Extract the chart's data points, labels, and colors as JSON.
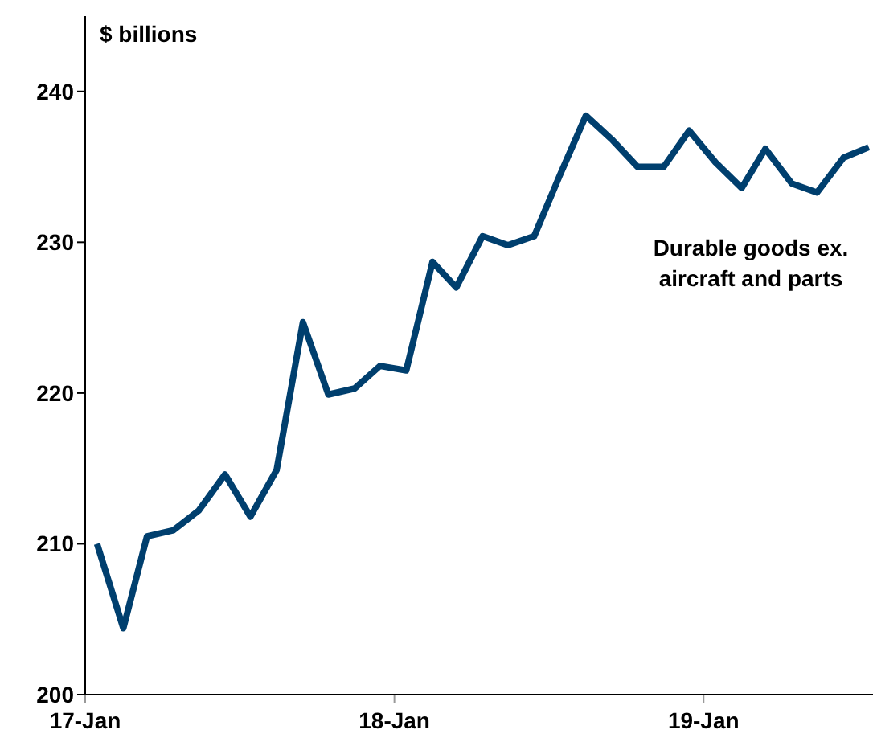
{
  "chart_data": {
    "type": "line",
    "ylabel": "$ billions",
    "annotations": [
      "Durable goods ex.\naircraft and parts"
    ],
    "x": [
      "2017-01-15",
      "2017-02-15",
      "2017-03-15",
      "2017-04-15",
      "2017-05-15",
      "2017-06-15",
      "2017-07-15",
      "2017-08-15",
      "2017-09-15",
      "2017-10-15",
      "2017-11-15",
      "2017-12-15",
      "2018-01-15",
      "2018-02-15",
      "2018-03-15",
      "2018-04-15",
      "2018-05-15",
      "2018-06-15",
      "2018-07-15",
      "2018-08-15",
      "2018-09-15",
      "2018-10-15",
      "2018-11-15",
      "2018-12-15",
      "2019-01-15",
      "2019-02-15",
      "2019-03-15",
      "2019-04-15",
      "2019-05-15",
      "2019-06-15",
      "2019-07-15"
    ],
    "series": [
      {
        "color": "#003f6e",
        "values": [
          210.0,
          204.4,
          210.5,
          210.9,
          212.2,
          214.6,
          211.8,
          214.9,
          224.7,
          219.9,
          220.3,
          221.8,
          221.5,
          228.7,
          227.0,
          230.4,
          229.8,
          230.4,
          234.4,
          238.4,
          236.8,
          235.0,
          235.0,
          237.4,
          235.3,
          233.6,
          236.2,
          233.9,
          233.3,
          235.6,
          236.3
        ]
      }
    ],
    "xlim": [
      "2017-01-01",
      "2019-07-20"
    ],
    "xticks": [
      {
        "value": "2017-01-01",
        "label": "17-Jan"
      },
      {
        "value": "2018-01-01",
        "label": "18-Jan"
      },
      {
        "value": "2019-01-01",
        "label": "19-Jan"
      }
    ],
    "ylim": [
      200,
      245
    ],
    "yticks": [
      200,
      210,
      220,
      230,
      240
    ],
    "grid": false,
    "legend": false,
    "marker": "none",
    "line_style": "solid"
  }
}
